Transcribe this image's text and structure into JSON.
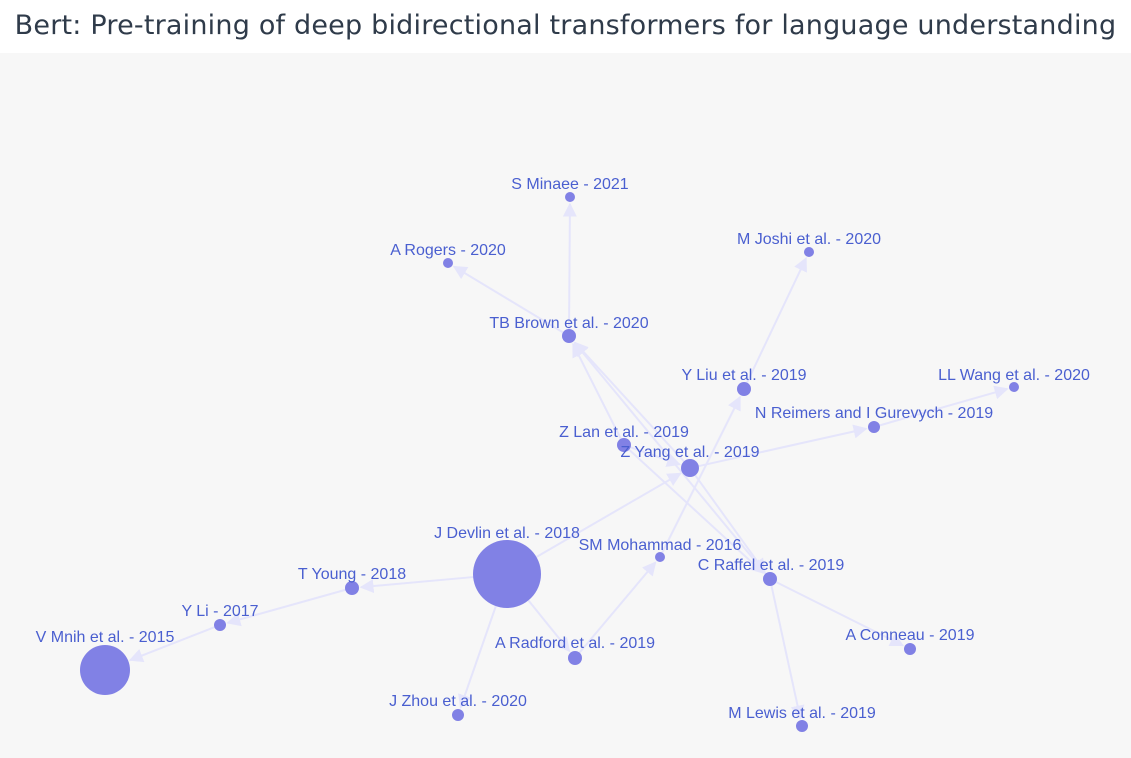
{
  "title": "Bert: Pre-training of deep bidirectional transformers for language understanding",
  "colors": {
    "node": "#8181e5",
    "edge": "#e5e5fb",
    "label": "#4a5fd0",
    "background": "#f7f7f7"
  },
  "nodes": [
    {
      "id": "devlin",
      "label": "J Devlin et al. - 2018",
      "size": "large"
    },
    {
      "id": "mnih",
      "label": "V Mnih et al. - 2015",
      "size": "medium-large"
    },
    {
      "id": "minaee",
      "label": "S Minaee - 2021",
      "size": "small"
    },
    {
      "id": "rogers",
      "label": "A Rogers - 2020",
      "size": "small"
    },
    {
      "id": "joshi",
      "label": "M Joshi et al. - 2020",
      "size": "small"
    },
    {
      "id": "brown",
      "label": "TB Brown et al. - 2020",
      "size": "medium"
    },
    {
      "id": "liu",
      "label": "Y Liu et al. - 2019",
      "size": "medium"
    },
    {
      "id": "wang",
      "label": "LL Wang et al. - 2020",
      "size": "small"
    },
    {
      "id": "reimers",
      "label": "N Reimers and  I Gurevych  - 2019",
      "size": "small"
    },
    {
      "id": "lan",
      "label": "Z Lan et al. - 2019",
      "size": "medium"
    },
    {
      "id": "yang",
      "label": "Z Yang et al. - 2019",
      "size": "medium"
    },
    {
      "id": "mohammad",
      "label": "SM Mohammad  - 2016",
      "size": "small"
    },
    {
      "id": "raffel",
      "label": "C Raffel et al. - 2019",
      "size": "medium"
    },
    {
      "id": "young",
      "label": "T Young - 2018",
      "size": "medium"
    },
    {
      "id": "li",
      "label": "Y Li  - 2017",
      "size": "small"
    },
    {
      "id": "conneau",
      "label": "A Conneau - 2019",
      "size": "small"
    },
    {
      "id": "radford",
      "label": "A Radford et al. - 2019",
      "size": "medium"
    },
    {
      "id": "zhou",
      "label": "J Zhou et al. - 2020",
      "size": "small"
    },
    {
      "id": "lewis",
      "label": "M Lewis et al. - 2019",
      "size": "small"
    }
  ],
  "edges": [
    {
      "from": "devlin",
      "to": "young"
    },
    {
      "from": "young",
      "to": "li"
    },
    {
      "from": "li",
      "to": "mnih"
    },
    {
      "from": "devlin",
      "to": "zhou"
    },
    {
      "from": "devlin",
      "to": "radford"
    },
    {
      "from": "devlin",
      "to": "yang"
    },
    {
      "from": "radford",
      "to": "mohammad"
    },
    {
      "from": "yang",
      "to": "reimers"
    },
    {
      "from": "reimers",
      "to": "wang"
    },
    {
      "from": "yang",
      "to": "brown"
    },
    {
      "from": "lan",
      "to": "brown"
    },
    {
      "from": "brown",
      "to": "minaee"
    },
    {
      "from": "brown",
      "to": "rogers"
    },
    {
      "from": "raffel",
      "to": "brown"
    },
    {
      "from": "lan",
      "to": "raffel"
    },
    {
      "from": "yang",
      "to": "raffel"
    },
    {
      "from": "raffel",
      "to": "conneau"
    },
    {
      "from": "raffel",
      "to": "lewis"
    },
    {
      "from": "mohammad",
      "to": "liu"
    },
    {
      "from": "liu",
      "to": "joshi"
    },
    {
      "from": "lan",
      "to": "yang"
    }
  ]
}
